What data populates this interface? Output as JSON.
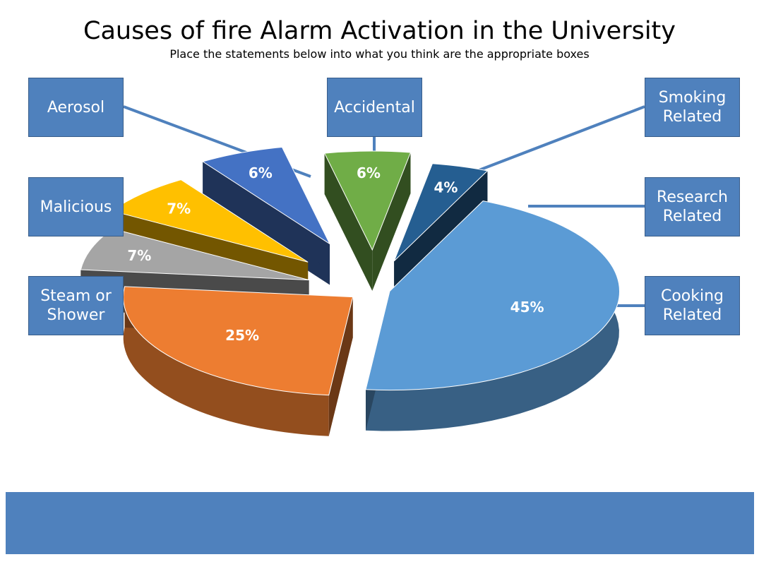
{
  "title": "Causes of fire Alarm Activation in the University",
  "subtitle": "Place the statements below into what you think are the appropriate boxes",
  "boxes": {
    "aerosol": "Aerosol",
    "malicious": "Malicious",
    "steam": "Steam or\nShower",
    "accidental": "Accidental",
    "smoking": "Smoking\nRelated",
    "research": "Research\nRelated",
    "cooking": "Cooking\nRelated"
  },
  "chart_data": {
    "type": "pie",
    "title": "Causes of fire Alarm Activation in the University",
    "slices": [
      {
        "label": "Cooking Related",
        "value": 45,
        "data_label": "45%",
        "color": "#5b9bd5"
      },
      {
        "label": "Steam or Shower",
        "value": 25,
        "data_label": "25%",
        "color": "#ed7d31"
      },
      {
        "label": "Malicious",
        "value": 7,
        "data_label": "7%",
        "color": "#a5a5a5"
      },
      {
        "label": "Aerosol",
        "value": 7,
        "data_label": "7%",
        "color": "#ffc000"
      },
      {
        "label": "Accidental",
        "value": 6,
        "data_label": "6%",
        "color": "#4472c4"
      },
      {
        "label": "Smoking Related",
        "value": 6,
        "data_label": "6%",
        "color": "#70ad47"
      },
      {
        "label": "Research Related",
        "value": 4,
        "data_label": "4%",
        "color": "#255e91"
      }
    ]
  },
  "colors": {
    "box_fill": "#4f81bd",
    "box_border": "#385d8a",
    "leader_line": "#4f81bd",
    "banner": "#4f81bd"
  }
}
